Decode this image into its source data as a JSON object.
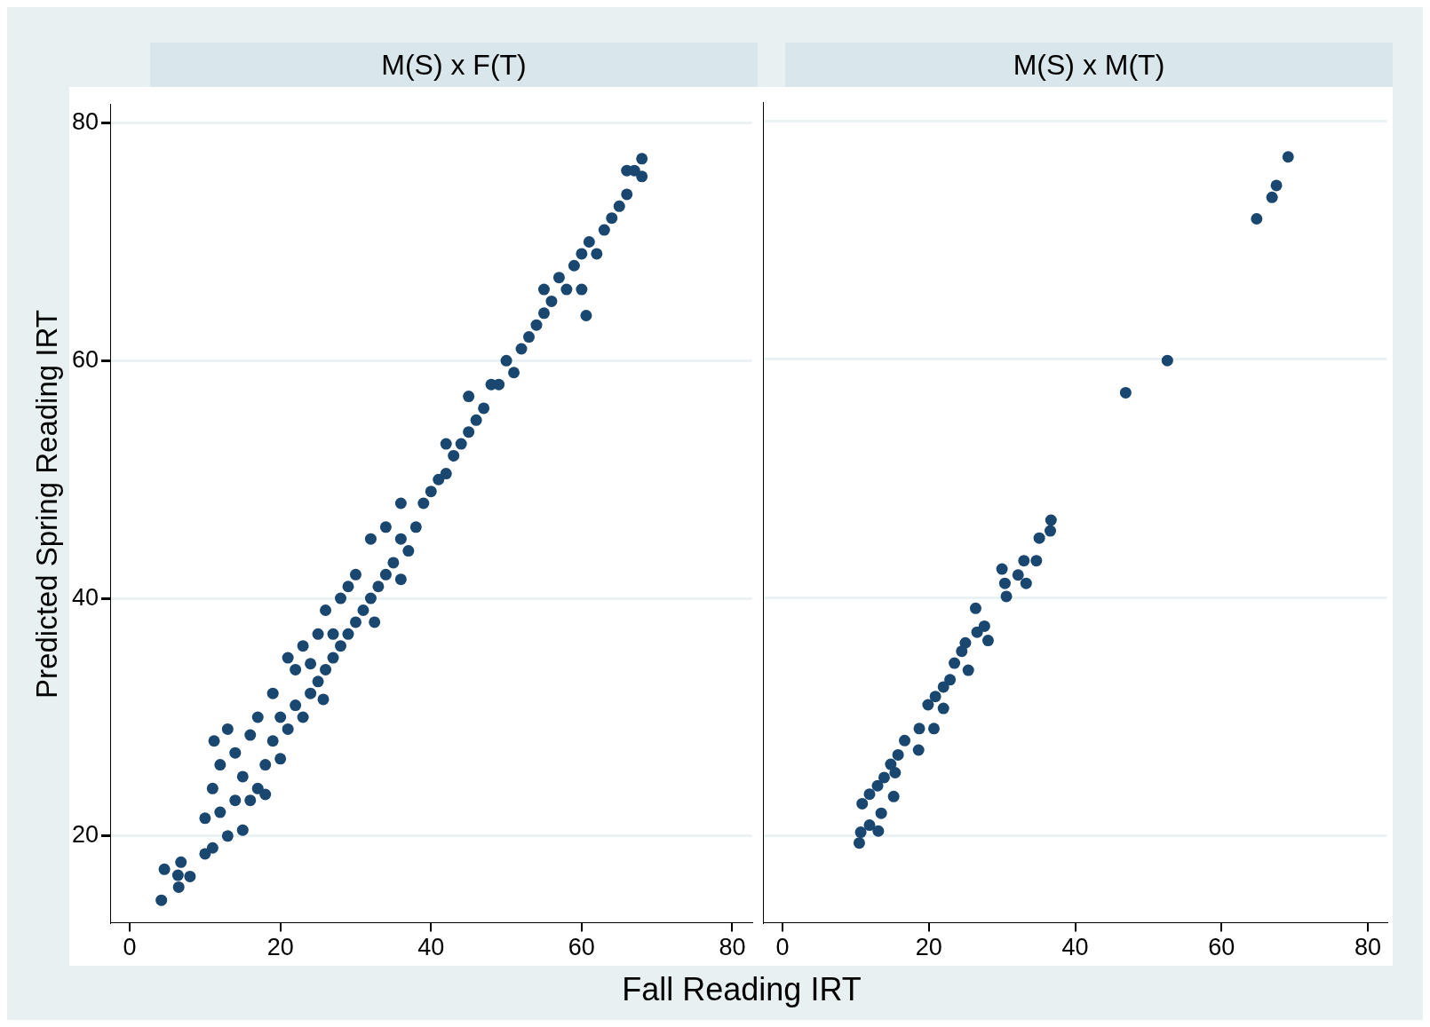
{
  "chart_data": [
    {
      "type": "scatter",
      "title": "M(S) x F(T)",
      "xlabel": "Fall Reading IRT",
      "ylabel": "Predicted Spring Reading IRT",
      "xlim": [
        -2.6,
        82.6
      ],
      "ylim": [
        12.7,
        81.6
      ],
      "xticks": [
        0,
        20,
        40,
        60,
        80
      ],
      "yticks": [
        20,
        40,
        60,
        80
      ],
      "grid": "y",
      "marker": "circle",
      "series": [
        {
          "color": "#1a476f",
          "x": [
            4.2,
            4.6,
            6.4,
            6.5,
            6.8,
            8.0,
            11.2,
            60.6,
            36.0,
            32.5,
            25.7,
            10,
            10,
            11,
            11,
            12,
            12,
            13,
            13,
            14,
            14,
            15,
            15,
            16,
            16,
            17,
            17,
            18,
            18,
            19,
            19,
            20,
            20,
            21,
            21,
            22,
            22,
            23,
            23,
            24,
            24,
            25,
            25,
            26,
            26,
            27,
            27,
            28,
            28,
            29,
            29,
            30,
            30,
            31,
            32,
            32,
            33,
            34,
            34,
            35,
            36,
            36,
            37,
            38,
            39,
            40,
            41,
            42,
            42,
            43,
            44,
            45,
            45,
            46,
            47,
            48,
            49,
            50,
            51,
            52,
            53,
            54,
            55,
            55,
            56,
            57,
            58,
            59,
            60,
            60,
            61,
            62,
            63,
            64,
            65,
            66,
            67,
            68,
            68,
            66
          ],
          "values": [
            14.6,
            17.2,
            16.7,
            15.7,
            17.8,
            16.6,
            28.0,
            63.8,
            41.6,
            38.0,
            31.5,
            18.5,
            21.5,
            24,
            19,
            22,
            26,
            20,
            29,
            23,
            27,
            20.5,
            25,
            23,
            28.5,
            24,
            30,
            26,
            23.5,
            28,
            32,
            26.5,
            30,
            35,
            29,
            31,
            34,
            30,
            36,
            32,
            34.5,
            33,
            37,
            34,
            39,
            35,
            37,
            36,
            40,
            37,
            41,
            38,
            42,
            39,
            40,
            45,
            41,
            42,
            46,
            43,
            45,
            48,
            44,
            46,
            48,
            49,
            50,
            50.5,
            53,
            52,
            53,
            54,
            57,
            55,
            56,
            58,
            58,
            60,
            59,
            61,
            62,
            63,
            64,
            66,
            65,
            67,
            66,
            68,
            69,
            66,
            70,
            69,
            71,
            72,
            73,
            74,
            76,
            75.5,
            77,
            76
          ]
        }
      ]
    },
    {
      "type": "scatter",
      "title": "M(S) x M(T)",
      "xlim": [
        -2.6,
        82.6
      ],
      "ylim": [
        12.7,
        81.6
      ],
      "xticks": [
        0,
        20,
        40,
        60,
        80
      ],
      "yticks": [
        20,
        40,
        60,
        80
      ],
      "grid": "y",
      "marker": "circle",
      "tick_labels": "x",
      "series": [
        {
          "color": "#1a476f",
          "x": [
            69.1,
            67.5,
            66.9,
            64.8,
            52.6,
            46.9,
            36.7,
            36.6,
            35.1,
            34.7,
            33.0,
            33.3,
            32.2,
            30.6,
            30.4,
            30.0,
            26.4,
            27.6,
            28.1,
            26.6,
            25.0,
            24.5,
            23.5,
            25.4,
            22.9,
            22.0,
            20.9,
            22.0,
            19.9,
            20.7,
            18.7,
            18.6,
            16.7,
            15.8,
            14.8,
            15.4,
            13.9,
            13.0,
            15.2,
            11.9,
            10.9,
            13.5,
            11.9,
            13.1,
            10.7,
            10.5
          ],
          "values": [
            77.0,
            74.6,
            73.6,
            71.8,
            59.9,
            57.2,
            46.5,
            45.6,
            45.0,
            43.1,
            43.1,
            41.2,
            41.9,
            40.1,
            41.2,
            42.4,
            39.1,
            37.6,
            36.4,
            37.1,
            36.2,
            35.5,
            34.5,
            33.9,
            33.1,
            32.5,
            31.7,
            30.7,
            31.0,
            29.0,
            29.0,
            27.2,
            28.0,
            26.8,
            26.0,
            25.3,
            24.9,
            24.2,
            23.3,
            23.5,
            22.7,
            21.9,
            20.9,
            20.4,
            20.3,
            19.4
          ]
        }
      ]
    }
  ]
}
